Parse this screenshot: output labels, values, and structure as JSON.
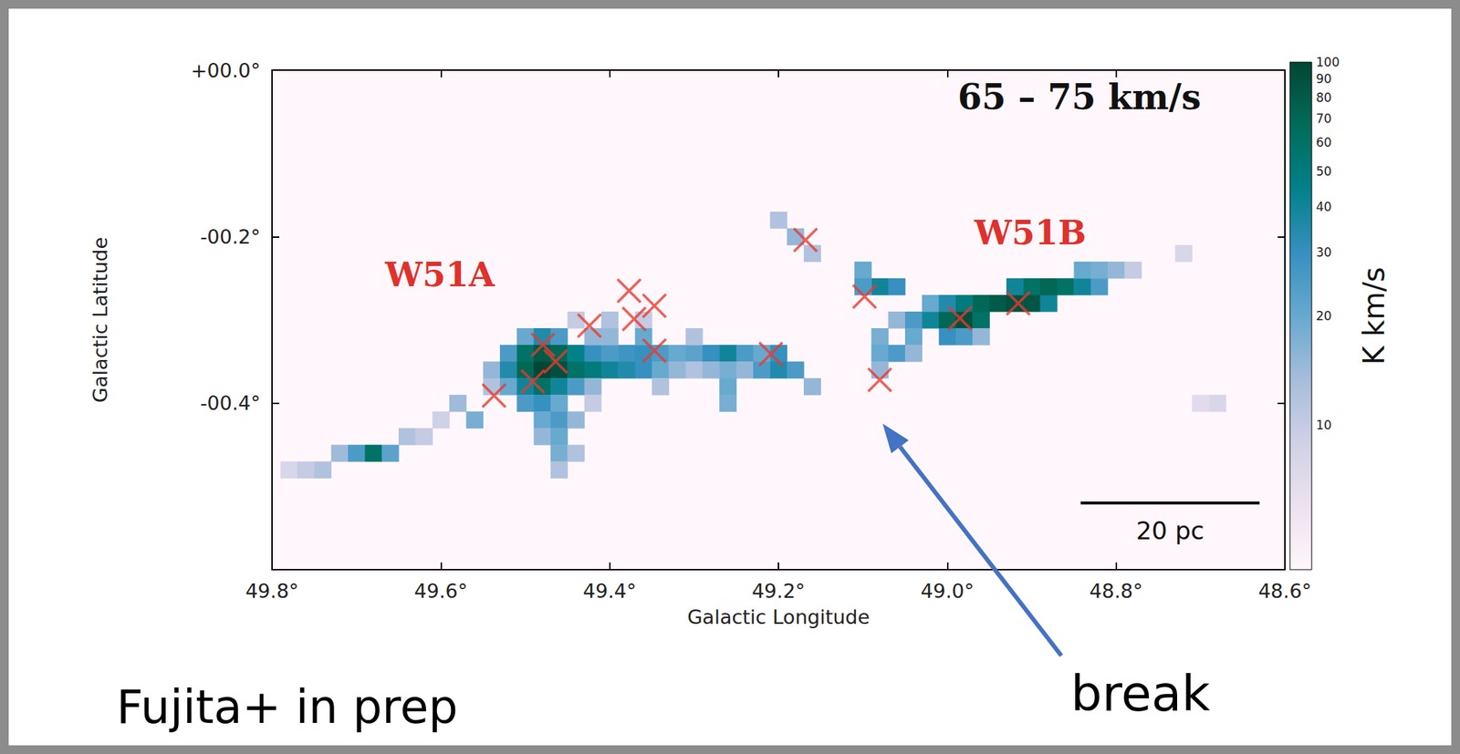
{
  "chart_data": {
    "type": "heatmap",
    "title": "65 – 75 km/s",
    "x_label": "Galactic Longitude",
    "y_label": "Galactic Latitude",
    "xlim": [
      49.8,
      48.6
    ],
    "xticks": [
      {
        "value": 49.8,
        "label": "49.8°"
      },
      {
        "value": 49.6,
        "label": "49.6°"
      },
      {
        "value": 49.4,
        "label": "49.4°"
      },
      {
        "value": 49.2,
        "label": "49.2°"
      },
      {
        "value": 49.0,
        "label": "49.0°"
      },
      {
        "value": 48.8,
        "label": "48.8°"
      },
      {
        "value": 48.6,
        "label": "48.6°"
      }
    ],
    "ylim": [
      -0.6,
      0.0
    ],
    "yticks": [
      {
        "value": 0.0,
        "label": "+00.0°"
      },
      {
        "value": -0.2,
        "label": "-00.2°"
      },
      {
        "value": -0.4,
        "label": "-00.4°"
      }
    ],
    "grid": false,
    "cell_size": 0.02,
    "cells": [
      [
        49.78,
        -0.48,
        8
      ],
      [
        49.76,
        -0.48,
        10
      ],
      [
        49.74,
        -0.48,
        12
      ],
      [
        49.72,
        -0.46,
        14
      ],
      [
        49.7,
        -0.46,
        25
      ],
      [
        49.68,
        -0.46,
        60
      ],
      [
        49.66,
        -0.46,
        22
      ],
      [
        49.64,
        -0.44,
        12
      ],
      [
        49.62,
        -0.44,
        10
      ],
      [
        49.6,
        -0.42,
        9
      ],
      [
        49.58,
        -0.4,
        14
      ],
      [
        49.56,
        -0.42,
        18
      ],
      [
        49.54,
        -0.38,
        12
      ],
      [
        49.5,
        -0.32,
        20
      ],
      [
        49.48,
        -0.32,
        35
      ],
      [
        49.46,
        -0.32,
        25
      ],
      [
        49.52,
        -0.34,
        25
      ],
      [
        49.5,
        -0.34,
        60
      ],
      [
        49.48,
        -0.34,
        80
      ],
      [
        49.46,
        -0.34,
        70
      ],
      [
        49.44,
        -0.34,
        45
      ],
      [
        49.42,
        -0.34,
        30
      ],
      [
        49.4,
        -0.34,
        25
      ],
      [
        49.38,
        -0.34,
        28
      ],
      [
        49.36,
        -0.34,
        30
      ],
      [
        49.34,
        -0.34,
        25
      ],
      [
        49.32,
        -0.34,
        20
      ],
      [
        49.3,
        -0.34,
        22
      ],
      [
        49.28,
        -0.34,
        30
      ],
      [
        49.26,
        -0.34,
        40
      ],
      [
        49.24,
        -0.34,
        25
      ],
      [
        49.22,
        -0.34,
        20
      ],
      [
        49.2,
        -0.34,
        30
      ],
      [
        49.54,
        -0.36,
        15
      ],
      [
        49.52,
        -0.36,
        35
      ],
      [
        49.5,
        -0.36,
        70
      ],
      [
        49.48,
        -0.36,
        100
      ],
      [
        49.46,
        -0.36,
        90
      ],
      [
        49.44,
        -0.36,
        60
      ],
      [
        49.42,
        -0.36,
        50
      ],
      [
        49.4,
        -0.36,
        40
      ],
      [
        49.38,
        -0.36,
        35
      ],
      [
        49.36,
        -0.36,
        30
      ],
      [
        49.34,
        -0.36,
        20
      ],
      [
        49.32,
        -0.36,
        15
      ],
      [
        49.3,
        -0.36,
        12
      ],
      [
        49.28,
        -0.36,
        15
      ],
      [
        49.26,
        -0.36,
        18
      ],
      [
        49.24,
        -0.36,
        15
      ],
      [
        49.22,
        -0.36,
        25
      ],
      [
        49.2,
        -0.36,
        35
      ],
      [
        49.18,
        -0.36,
        25
      ],
      [
        49.16,
        -0.38,
        15
      ],
      [
        49.52,
        -0.38,
        20
      ],
      [
        49.5,
        -0.38,
        40
      ],
      [
        49.48,
        -0.38,
        60
      ],
      [
        49.46,
        -0.38,
        40
      ],
      [
        49.44,
        -0.38,
        25
      ],
      [
        49.42,
        -0.38,
        15
      ],
      [
        49.34,
        -0.38,
        12
      ],
      [
        49.26,
        -0.38,
        20
      ],
      [
        49.5,
        -0.4,
        25
      ],
      [
        49.48,
        -0.4,
        30
      ],
      [
        49.46,
        -0.4,
        20
      ],
      [
        49.26,
        -0.4,
        18
      ],
      [
        49.42,
        -0.4,
        10
      ],
      [
        49.48,
        -0.42,
        20
      ],
      [
        49.46,
        -0.42,
        25
      ],
      [
        49.44,
        -0.42,
        15
      ],
      [
        49.48,
        -0.44,
        15
      ],
      [
        49.46,
        -0.44,
        20
      ],
      [
        49.46,
        -0.46,
        18
      ],
      [
        49.44,
        -0.46,
        12
      ],
      [
        49.46,
        -0.48,
        12
      ],
      [
        49.44,
        -0.3,
        10
      ],
      [
        49.4,
        -0.3,
        12
      ],
      [
        49.36,
        -0.3,
        10
      ],
      [
        49.3,
        -0.32,
        12
      ],
      [
        49.42,
        -0.32,
        15
      ],
      [
        49.4,
        -0.32,
        15
      ],
      [
        49.36,
        -0.32,
        20
      ],
      [
        49.2,
        -0.18,
        12
      ],
      [
        49.18,
        -0.2,
        15
      ],
      [
        49.16,
        -0.22,
        12
      ],
      [
        49.1,
        -0.24,
        20
      ],
      [
        49.08,
        -0.26,
        40
      ],
      [
        49.06,
        -0.26,
        30
      ],
      [
        49.1,
        -0.26,
        25
      ],
      [
        49.06,
        -0.3,
        15
      ],
      [
        49.04,
        -0.3,
        25
      ],
      [
        49.02,
        -0.3,
        40
      ],
      [
        49.0,
        -0.3,
        70
      ],
      [
        48.98,
        -0.3,
        90
      ],
      [
        48.96,
        -0.3,
        60
      ],
      [
        49.02,
        -0.28,
        20
      ],
      [
        49.0,
        -0.28,
        35
      ],
      [
        48.98,
        -0.28,
        50
      ],
      [
        48.96,
        -0.28,
        70
      ],
      [
        48.94,
        -0.28,
        80
      ],
      [
        48.92,
        -0.28,
        90
      ],
      [
        48.9,
        -0.28,
        85
      ],
      [
        48.88,
        -0.28,
        40
      ],
      [
        48.92,
        -0.26,
        40
      ],
      [
        48.9,
        -0.26,
        60
      ],
      [
        48.88,
        -0.26,
        70
      ],
      [
        48.86,
        -0.26,
        60
      ],
      [
        48.84,
        -0.26,
        40
      ],
      [
        48.82,
        -0.26,
        25
      ],
      [
        48.84,
        -0.24,
        20
      ],
      [
        48.82,
        -0.24,
        18
      ],
      [
        48.8,
        -0.24,
        15
      ],
      [
        48.78,
        -0.24,
        10
      ],
      [
        49.08,
        -0.32,
        18
      ],
      [
        49.04,
        -0.32,
        20
      ],
      [
        49.0,
        -0.32,
        30
      ],
      [
        48.98,
        -0.32,
        25
      ],
      [
        48.96,
        -0.32,
        15
      ],
      [
        49.08,
        -0.34,
        20
      ],
      [
        49.06,
        -0.34,
        25
      ],
      [
        49.04,
        -0.34,
        15
      ],
      [
        49.08,
        -0.36,
        15
      ],
      [
        48.72,
        -0.22,
        8
      ],
      [
        48.68,
        -0.4,
        8
      ],
      [
        48.7,
        -0.4,
        7
      ]
    ],
    "colorbar": {
      "label": "K km/s",
      "log": true,
      "range": [
        4,
        100
      ],
      "ticks": [
        10,
        20,
        30,
        40,
        50,
        60,
        70,
        80,
        90,
        100
      ]
    },
    "series": [
      {
        "type": "scatter",
        "marker": "x",
        "color": "#e8392f",
        "x": [
          49.537,
          49.479,
          49.464,
          49.491,
          49.424,
          49.377,
          49.371,
          49.347,
          49.347,
          49.209,
          49.168,
          49.098,
          49.08,
          48.985,
          48.916
        ],
        "y": [
          -0.391,
          -0.33,
          -0.35,
          -0.374,
          -0.307,
          -0.265,
          -0.299,
          -0.283,
          -0.337,
          -0.341,
          -0.204,
          -0.272,
          -0.372,
          -0.298,
          -0.28
        ]
      }
    ],
    "annotations": [
      {
        "text": "W51A",
        "color": "#e0312b"
      },
      {
        "text": "W51B",
        "color": "#e0312b"
      },
      {
        "text": "break",
        "color": "#000000"
      },
      {
        "text": "Fujita+ in prep",
        "color": "#000000"
      }
    ],
    "scale_bar": {
      "label": "20 pc",
      "length": 0.212
    }
  }
}
